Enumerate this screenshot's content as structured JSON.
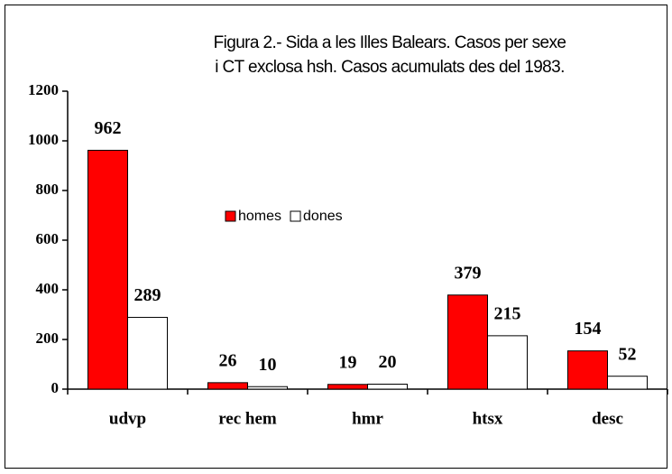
{
  "chart_data": {
    "type": "bar",
    "title": [
      "Figura 2.- Sida a les Illes Balears. Casos per sexe",
      "i CT exclosa hsh.  Casos acumulats des del  1983."
    ],
    "categories": [
      "udvp",
      "rec hem",
      "hmr",
      "htsx",
      "desc"
    ],
    "series": [
      {
        "name": "homes",
        "color": "#ff0000",
        "values": [
          962,
          26,
          19,
          379,
          154
        ]
      },
      {
        "name": "dones",
        "color": "#ffffff",
        "values": [
          289,
          10,
          20,
          215,
          52
        ]
      }
    ],
    "ylim": [
      0,
      1200
    ],
    "yticks": [
      0,
      200,
      400,
      600,
      800,
      1000,
      1200
    ],
    "grid": false
  }
}
